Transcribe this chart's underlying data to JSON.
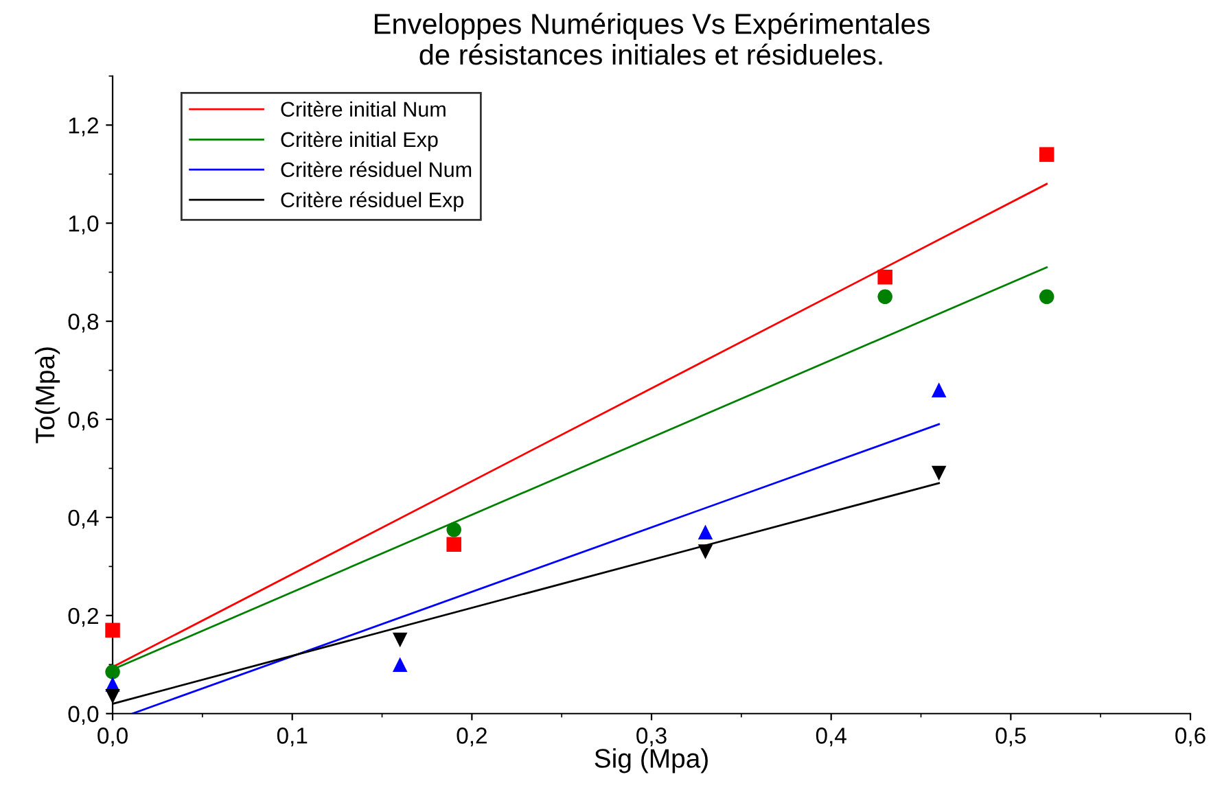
{
  "chart_data": {
    "type": "scatter",
    "title": "Enveloppes Numériques Vs Expérimentales\nde résistances initiales et résidueles.",
    "xlabel": "Sig (Mpa)",
    "ylabel": "To(Mpa)",
    "xlim": [
      0,
      0.6
    ],
    "ylim": [
      0,
      1.3
    ],
    "xticks": [
      {
        "value": 0,
        "label": "0,0"
      },
      {
        "value": 0.1,
        "label": "0,1"
      },
      {
        "value": 0.2,
        "label": "0,2"
      },
      {
        "value": 0.3,
        "label": "0,3"
      },
      {
        "value": 0.4,
        "label": "0,4"
      },
      {
        "value": 0.5,
        "label": "0,5"
      },
      {
        "value": 0.6,
        "label": "0,6"
      }
    ],
    "yticks": [
      {
        "value": 0,
        "label": "0,0"
      },
      {
        "value": 0.2,
        "label": "0,2"
      },
      {
        "value": 0.4,
        "label": "0,4"
      },
      {
        "value": 0.6,
        "label": "0,6"
      },
      {
        "value": 0.8,
        "label": "0,8"
      },
      {
        "value": 1.0,
        "label": "1,0"
      },
      {
        "value": 1.2,
        "label": "1,2"
      }
    ],
    "grid": false,
    "legend": "top left",
    "series": [
      {
        "marker": "square",
        "color": "#ff0000",
        "x": [
          0,
          0.19,
          0.43,
          0.52
        ],
        "values": [
          0.17,
          0.345,
          0.89,
          1.14
        ]
      },
      {
        "marker": "circle",
        "color": "#008000",
        "x": [
          0,
          0.19,
          0.43,
          0.52
        ],
        "values": [
          0.085,
          0.375,
          0.85,
          0.85
        ]
      },
      {
        "marker": "triangle",
        "color": "#0000ff",
        "x": [
          0,
          0.16,
          0.33,
          0.46
        ],
        "values": [
          0.06,
          0.1,
          0.37,
          0.66
        ]
      },
      {
        "marker": "triangle_down",
        "color": "#000000",
        "x": [
          0,
          0.16,
          0.33,
          0.46
        ],
        "values": [
          0.035,
          0.15,
          0.33,
          0.49
        ]
      },
      {
        "type": "line",
        "name": "Critère initial Num",
        "color": "#ff0000",
        "x": [
          0,
          0.52
        ],
        "values": [
          0.095,
          1.08
        ]
      },
      {
        "type": "line",
        "name": "Critère initial Exp",
        "color": "#008000",
        "x": [
          0,
          0.52
        ],
        "values": [
          0.09,
          0.91
        ]
      },
      {
        "type": "line",
        "name": "Critère résiduel Num",
        "color": "#0000ff",
        "x": [
          0.011,
          0.46
        ],
        "values": [
          0,
          0.59
        ]
      },
      {
        "type": "line",
        "name": "Critère résiduel Exp",
        "color": "#000000",
        "x": [
          0,
          0.46
        ],
        "values": [
          0.02,
          0.47
        ]
      }
    ]
  }
}
